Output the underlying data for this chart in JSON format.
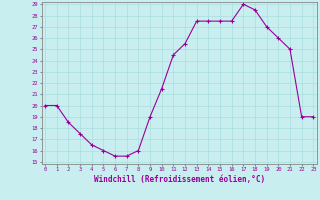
{
  "hours": [
    0,
    1,
    2,
    3,
    4,
    5,
    6,
    7,
    8,
    9,
    10,
    11,
    12,
    13,
    14,
    15,
    16,
    17,
    18,
    19,
    20,
    21,
    22,
    23
  ],
  "values": [
    20.0,
    20.0,
    18.5,
    17.5,
    16.5,
    16.0,
    15.5,
    15.5,
    16.0,
    19.0,
    21.5,
    24.5,
    25.5,
    27.5,
    27.5,
    27.5,
    27.5,
    29.0,
    28.5,
    27.0,
    26.0,
    25.0,
    19.0,
    19.0
  ],
  "line_color": "#990099",
  "marker": "+",
  "bg_color": "#c8eef0",
  "grid_color": "#aadddf",
  "axis_color": "#888888",
  "tick_color": "#990099",
  "xlabel": "Windchill (Refroidissement éolien,°C)",
  "xlabel_color": "#990099",
  "ylim_min": 15,
  "ylim_max": 29,
  "xlim_min": 0,
  "xlim_max": 23,
  "yticks": [
    15,
    16,
    17,
    18,
    19,
    20,
    21,
    22,
    23,
    24,
    25,
    26,
    27,
    28,
    29
  ],
  "xticks": [
    0,
    1,
    2,
    3,
    4,
    5,
    6,
    7,
    8,
    9,
    10,
    11,
    12,
    13,
    14,
    15,
    16,
    17,
    18,
    19,
    20,
    21,
    22,
    23
  ]
}
